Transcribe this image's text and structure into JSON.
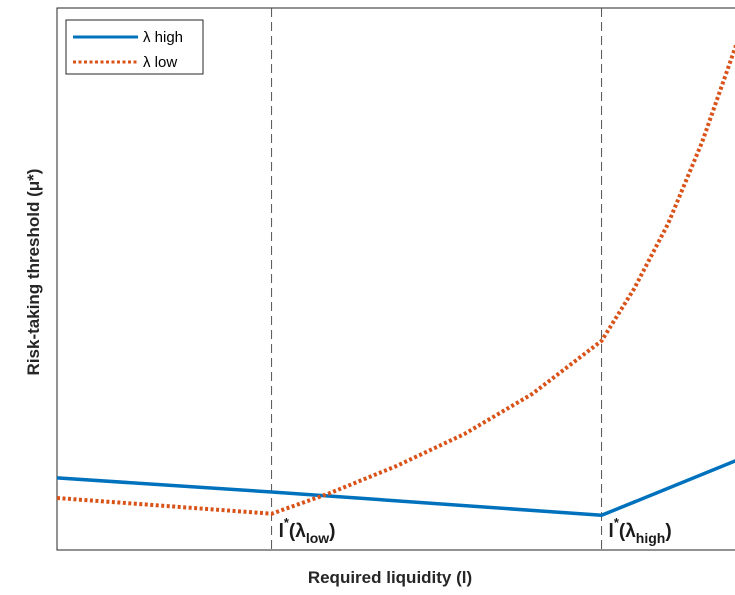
{
  "chart_data": {
    "type": "line",
    "xlabel": "Required liquidity (l)",
    "ylabel": "Risk-taking threshold (μ*)",
    "xlim": [
      0,
      100
    ],
    "ylim": [
      0,
      100
    ],
    "grid": false,
    "legend_placement": "top-left",
    "colors": {
      "high": "#0072bd",
      "low": "#d95319"
    },
    "series": [
      {
        "name": "λ high",
        "key": "high",
        "style": "solid",
        "x": [
          0,
          31.6,
          80.2,
          100
        ],
        "y": [
          13.3,
          10.7,
          6.4,
          16.5
        ]
      },
      {
        "name": "λ low",
        "key": "low",
        "style": "dotted",
        "x": [
          0,
          31.6,
          40,
          50,
          60,
          70,
          80.2,
          85,
          90,
          95,
          100
        ],
        "y": [
          9.6,
          6.7,
          10.4,
          15.5,
          21.4,
          28.8,
          38.6,
          48.2,
          60.2,
          75.2,
          93.1
        ]
      }
    ],
    "vlines": [
      31.6,
      80.2
    ],
    "annotations": [
      {
        "main": "l",
        "sup": "*",
        "paren_open": "(λ",
        "sub": "low",
        "paren_close": ")",
        "x": 31.6
      },
      {
        "main": "l",
        "sup": "*",
        "paren_open": "(λ",
        "sub": "high",
        "paren_close": ")",
        "x": 80.2
      }
    ]
  }
}
